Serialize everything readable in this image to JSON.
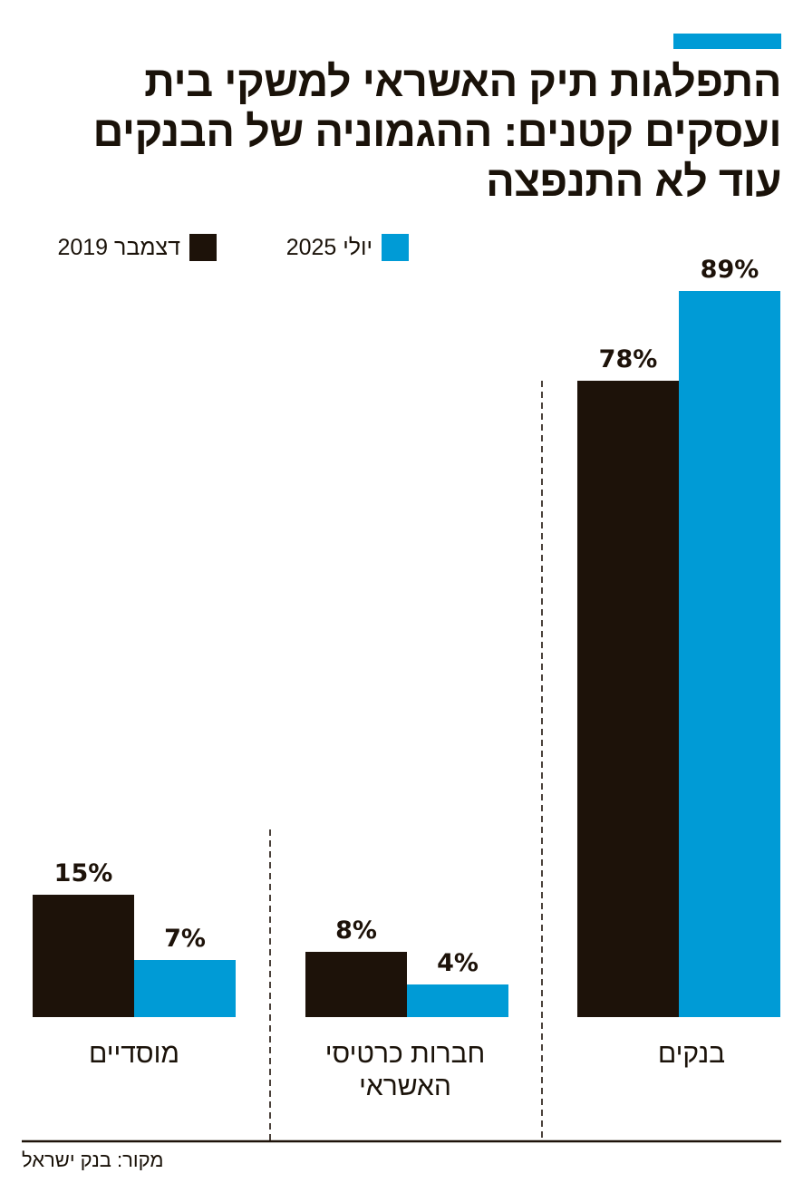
{
  "title_lines": [
    "התפלגות תיק האשראי למשקי בית",
    "ועסקים קטנים: ההגמוניה של הבנקים",
    "עוד לא התנפצה"
  ],
  "legend": [
    {
      "label": "יולי 2025",
      "color": "#009bd6"
    },
    {
      "label": "דצמבר 2019",
      "color": "#1d1209"
    }
  ],
  "chart_data": {
    "type": "bar",
    "title": "התפלגות תיק האשראי למשקי בית ועסקים קטנים: ההגמוניה של הבנקים עוד לא התנפצה",
    "categories": [
      "בנקים",
      "חברות כרטיסי האשראי",
      "מוסדיים"
    ],
    "category_lines": [
      [
        "בנקים"
      ],
      [
        "חברות כרטיסי",
        "האשראי"
      ],
      [
        "מוסדיים"
      ]
    ],
    "series": [
      {
        "name": "דצמבר 2019",
        "color": "#1d1209",
        "values": [
          78,
          8,
          15
        ],
        "labels": [
          "78%",
          "8%",
          "15%"
        ]
      },
      {
        "name": "יולי 2025",
        "color": "#009bd6",
        "values": [
          89,
          4,
          7
        ],
        "labels": [
          "89%",
          "4%",
          "7%"
        ]
      }
    ],
    "unit": "%",
    "ylim": [
      0,
      89
    ],
    "xlabel": "",
    "ylabel": ""
  },
  "source": "מקור: בנק ישראל"
}
